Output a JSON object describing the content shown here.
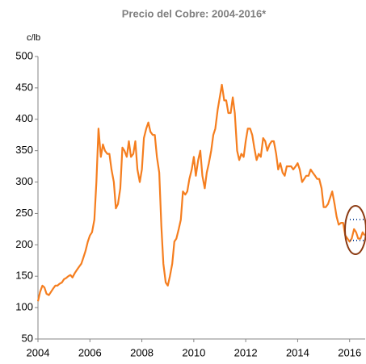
{
  "chart_data": {
    "type": "line",
    "title": "Precio del Cobre: 2004-2016*",
    "ylabel": "c/lb",
    "color": "#f57e1f",
    "xlim": [
      2004,
      2016.6
    ],
    "xticks": [
      2004,
      2006,
      2008,
      2010,
      2012,
      2014,
      2016
    ],
    "ylim": [
      50,
      500
    ],
    "yticks": [
      50,
      100,
      150,
      200,
      250,
      300,
      350,
      400,
      450,
      500
    ],
    "grid": false,
    "x": [
      2004.0,
      2004.08,
      2004.17,
      2004.25,
      2004.33,
      2004.42,
      2004.5,
      2004.58,
      2004.67,
      2004.75,
      2004.83,
      2004.92,
      2005.0,
      2005.08,
      2005.17,
      2005.25,
      2005.33,
      2005.42,
      2005.5,
      2005.58,
      2005.67,
      2005.75,
      2005.83,
      2005.92,
      2006.0,
      2006.08,
      2006.17,
      2006.25,
      2006.33,
      2006.42,
      2006.5,
      2006.58,
      2006.67,
      2006.75,
      2006.83,
      2006.92,
      2007.0,
      2007.08,
      2007.17,
      2007.25,
      2007.33,
      2007.42,
      2007.5,
      2007.58,
      2007.67,
      2007.75,
      2007.83,
      2007.92,
      2008.0,
      2008.08,
      2008.17,
      2008.25,
      2008.33,
      2008.42,
      2008.5,
      2008.58,
      2008.67,
      2008.75,
      2008.83,
      2008.92,
      2009.0,
      2009.08,
      2009.17,
      2009.25,
      2009.33,
      2009.42,
      2009.5,
      2009.58,
      2009.67,
      2009.75,
      2009.83,
      2009.92,
      2010.0,
      2010.08,
      2010.17,
      2010.25,
      2010.33,
      2010.42,
      2010.5,
      2010.58,
      2010.67,
      2010.75,
      2010.83,
      2010.92,
      2011.0,
      2011.08,
      2011.17,
      2011.25,
      2011.33,
      2011.42,
      2011.5,
      2011.58,
      2011.67,
      2011.75,
      2011.83,
      2011.92,
      2012.0,
      2012.08,
      2012.17,
      2012.25,
      2012.33,
      2012.42,
      2012.5,
      2012.58,
      2012.67,
      2012.75,
      2012.83,
      2012.92,
      2013.0,
      2013.08,
      2013.17,
      2013.25,
      2013.33,
      2013.42,
      2013.5,
      2013.58,
      2013.67,
      2013.75,
      2013.83,
      2013.92,
      2014.0,
      2014.08,
      2014.17,
      2014.25,
      2014.33,
      2014.42,
      2014.5,
      2014.58,
      2014.67,
      2014.75,
      2014.83,
      2014.92,
      2015.0,
      2015.08,
      2015.17,
      2015.25,
      2015.33,
      2015.42,
      2015.5,
      2015.58,
      2015.67,
      2015.75,
      2015.83,
      2015.92,
      2016.0,
      2016.08,
      2016.17,
      2016.25,
      2016.33,
      2016.42,
      2016.5,
      2016.58
    ],
    "values": [
      110,
      125,
      135,
      132,
      122,
      120,
      125,
      130,
      135,
      135,
      138,
      140,
      145,
      147,
      150,
      152,
      148,
      155,
      160,
      165,
      170,
      180,
      190,
      205,
      215,
      220,
      240,
      300,
      385,
      340,
      360,
      350,
      345,
      345,
      320,
      300,
      258,
      265,
      290,
      355,
      350,
      340,
      365,
      340,
      345,
      365,
      320,
      300,
      320,
      370,
      385,
      395,
      380,
      375,
      375,
      340,
      315,
      230,
      170,
      140,
      135,
      150,
      170,
      205,
      210,
      225,
      240,
      285,
      280,
      285,
      305,
      320,
      340,
      310,
      335,
      350,
      310,
      290,
      315,
      330,
      350,
      375,
      385,
      415,
      435,
      455,
      430,
      430,
      410,
      410,
      435,
      410,
      350,
      335,
      345,
      340,
      365,
      385,
      385,
      375,
      355,
      335,
      345,
      340,
      370,
      365,
      350,
      360,
      365,
      365,
      345,
      320,
      330,
      315,
      310,
      325,
      325,
      325,
      320,
      325,
      330,
      320,
      300,
      305,
      310,
      310,
      320,
      315,
      310,
      305,
      305,
      290,
      260,
      260,
      265,
      275,
      285,
      265,
      245,
      232,
      235,
      235,
      215,
      210,
      205,
      210,
      225,
      220,
      210,
      210,
      220,
      215
    ]
  }
}
